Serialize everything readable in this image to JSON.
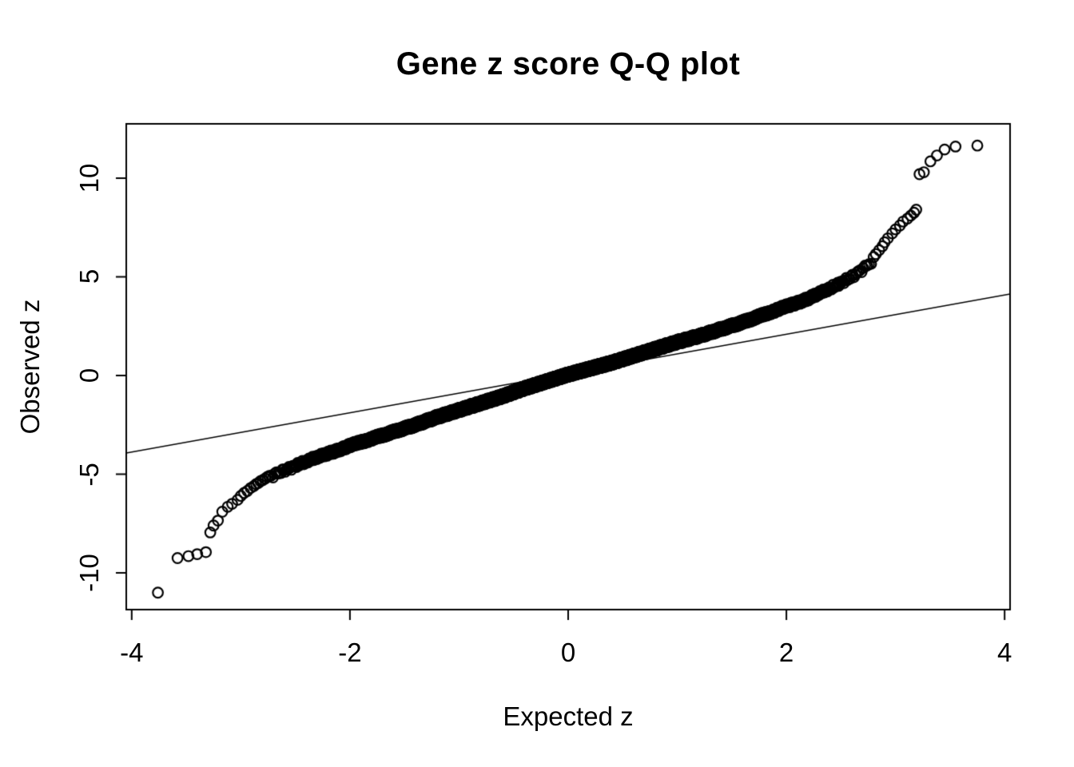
{
  "title": "Gene z score Q-Q plot",
  "chart_data": {
    "type": "scatter",
    "subtype": "qq-plot",
    "title": "Gene z score Q-Q plot",
    "xlabel": "Expected z",
    "ylabel": "Observed z",
    "xlim": [
      -4.05,
      4.05
    ],
    "ylim": [
      -11.86,
      12.75
    ],
    "x_ticks": [
      -4,
      -2,
      0,
      2,
      4
    ],
    "y_ticks": [
      -10,
      -5,
      0,
      5,
      10
    ],
    "x_tick_labels": [
      "-4",
      "-2",
      "0",
      "2",
      "4"
    ],
    "y_tick_labels": [
      "-10",
      "-5",
      "0",
      "5",
      "10"
    ],
    "grid": false,
    "legend_position": "none",
    "point_color": "#000000",
    "line_color": "#000000",
    "background_color": "#ffffff",
    "marker": {
      "shape": "open-circle",
      "radius_px": 6.3,
      "stroke_px": 2.2
    },
    "reference_line": {
      "intercept": 0.1,
      "slope": 0.995
    },
    "curve_control_points": [
      [
        -2.79,
        -5.25
      ],
      [
        -2.6,
        -4.8
      ],
      [
        -2.4,
        -4.35
      ],
      [
        -2.2,
        -3.95
      ],
      [
        -2.0,
        -3.55
      ],
      [
        -1.8,
        -3.2
      ],
      [
        -1.6,
        -2.85
      ],
      [
        -1.4,
        -2.5
      ],
      [
        -1.2,
        -2.1
      ],
      [
        -1.0,
        -1.75
      ],
      [
        -0.8,
        -1.4
      ],
      [
        -0.6,
        -1.05
      ],
      [
        -0.4,
        -0.65
      ],
      [
        -0.2,
        -0.3
      ],
      [
        0.0,
        0.05
      ],
      [
        0.2,
        0.35
      ],
      [
        0.4,
        0.65
      ],
      [
        0.6,
        1.0
      ],
      [
        0.8,
        1.35
      ],
      [
        1.0,
        1.7
      ],
      [
        1.2,
        2.0
      ],
      [
        1.4,
        2.35
      ],
      [
        1.6,
        2.7
      ],
      [
        1.8,
        3.1
      ],
      [
        2.0,
        3.5
      ],
      [
        2.2,
        3.9
      ],
      [
        2.4,
        4.4
      ],
      [
        2.6,
        5.0
      ],
      [
        2.7,
        5.4
      ],
      [
        2.79,
        5.8
      ]
    ],
    "dense_range": [
      -2.79,
      2.79
    ],
    "dense_points_n": 6000,
    "tail_points": [
      [
        -3.76,
        -11.0
      ],
      [
        -3.58,
        -9.25
      ],
      [
        -3.48,
        -9.15
      ],
      [
        -3.4,
        -9.05
      ],
      [
        -3.32,
        -8.95
      ],
      [
        -3.28,
        -7.95
      ],
      [
        -3.25,
        -7.6
      ],
      [
        -3.21,
        -7.35
      ],
      [
        -3.17,
        -6.9
      ],
      [
        -3.12,
        -6.65
      ],
      [
        -3.08,
        -6.5
      ],
      [
        -3.03,
        -6.3
      ],
      [
        -3.0,
        -6.1
      ],
      [
        -2.97,
        -5.95
      ],
      [
        -2.94,
        -5.85
      ],
      [
        -2.91,
        -5.7
      ],
      [
        -2.88,
        -5.6
      ],
      [
        -2.86,
        -5.5
      ],
      [
        -2.84,
        -5.45
      ],
      [
        -2.82,
        -5.35
      ],
      [
        -2.8,
        -5.3
      ],
      [
        2.8,
        6.0
      ],
      [
        2.82,
        6.15
      ],
      [
        2.85,
        6.35
      ],
      [
        2.88,
        6.55
      ],
      [
        2.9,
        6.75
      ],
      [
        2.93,
        6.95
      ],
      [
        2.97,
        7.2
      ],
      [
        3.0,
        7.4
      ],
      [
        3.04,
        7.6
      ],
      [
        3.07,
        7.8
      ],
      [
        3.11,
        7.95
      ],
      [
        3.14,
        8.1
      ],
      [
        3.17,
        8.25
      ],
      [
        3.19,
        8.4
      ],
      [
        3.22,
        10.2
      ],
      [
        3.26,
        10.3
      ],
      [
        3.32,
        10.85
      ],
      [
        3.38,
        11.15
      ],
      [
        3.45,
        11.45
      ],
      [
        3.55,
        11.6
      ],
      [
        3.75,
        11.65
      ]
    ]
  }
}
